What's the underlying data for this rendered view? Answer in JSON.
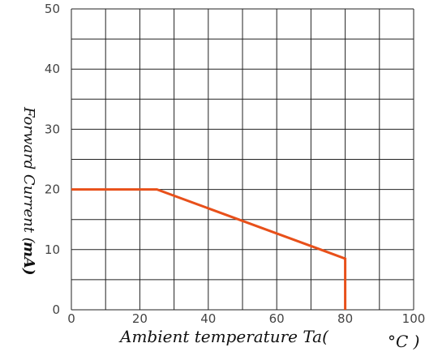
{
  "chart_data": {
    "type": "line",
    "title": "",
    "xlabel": "Ambient temperature Ta(",
    "xunit": "°C )",
    "ylabel": "Forward Current (",
    "yunit": "mA)",
    "xlim": [
      0,
      100
    ],
    "ylim": [
      0,
      50
    ],
    "grid": true,
    "x_ticks": [
      "0",
      "20",
      "40",
      "60",
      "80",
      "100"
    ],
    "y_ticks": [
      "0",
      "10",
      "20",
      "30",
      "40",
      "50"
    ],
    "series": [
      {
        "x": [
          0,
          25,
          80,
          80
        ],
        "y": [
          20,
          20,
          8.5,
          0
        ],
        "color": "#e8501a"
      }
    ]
  }
}
